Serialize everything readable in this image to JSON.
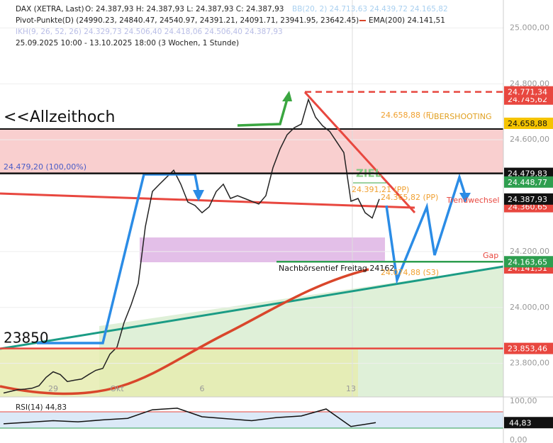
{
  "chart_data": {
    "type": "line",
    "header": {
      "symbol": "DAX (XETRA, Last)",
      "ohlc": "O: 24.387,93  H: 24.387,93  L: 24.387,93  C: 24.387,93",
      "bb": "BB(20, 2)  24.713,63  24.439,72  24.165,82",
      "pivot": "Pivot-Punkte(D)  (24990.23,  24840.47,  24540.97,  24391.21,  24091.71,  23941.95,  23642.45)",
      "ema": "EMA(200)  24.141,51",
      "ikh": "IKH(9, 26, 52, 26)  24.329,73  24.506,40  24.418,06  24.506,40  24.387,93",
      "range": "25.09.2025 10:00 - 13.10.2025 18:00 (3 Wochen, 1 Stunde)"
    },
    "categories": [
      null,
      null,
      null,
      null,
      null,
      null,
      null,
      "29",
      null,
      null,
      null,
      null,
      null,
      null,
      null,
      null,
      "Okt",
      null,
      null,
      null,
      null,
      null,
      null,
      null,
      null,
      null,
      null,
      null,
      "6",
      null,
      null,
      null,
      null,
      null,
      null,
      null,
      null,
      null,
      null,
      null,
      null,
      null,
      null,
      null,
      null,
      null,
      null,
      null,
      null,
      "13",
      null,
      null,
      null,
      null
    ],
    "values": [
      23694,
      23700,
      23706,
      23708,
      23711,
      23720,
      23750,
      23770,
      23760,
      23735,
      23740,
      23744,
      23760,
      23775,
      23782,
      23833,
      23858,
      23946,
      24010,
      24086,
      24289,
      24415,
      24441,
      24466,
      24491,
      24441,
      24377,
      24365,
      24339,
      24360,
      24415,
      24441,
      24390,
      24400,
      24390,
      24380,
      24370,
      24400,
      24500,
      24567,
      24618,
      24643,
      24656,
      24744,
      24681,
      24650,
      24630,
      24592,
      24554,
      24380,
      24390,
      24339,
      24320,
      24388
    ],
    "color": "#222222",
    "ylim": [
      23680,
      25100
    ],
    "yticks": [
      {
        "value": 23800,
        "label": "23.800,00"
      },
      {
        "value": 24000,
        "label": "24.000,00"
      },
      {
        "value": 24200,
        "label": "24.200,00"
      },
      {
        "value": 24600,
        "label": "24.600,00"
      },
      {
        "value": 24800,
        "label": "24.800,00"
      },
      {
        "value": 25000,
        "label": "25.000,00"
      }
    ],
    "levels": [
      {
        "value": 24745.62,
        "label": "24.745,62",
        "color": "#e8473f"
      },
      {
        "value": 24771.34,
        "label": "24.771,34",
        "color": "#e8473f",
        "line": "dashed"
      },
      {
        "value": 24658.88,
        "label": "24.658,88",
        "color": "#f5c400"
      },
      {
        "value": 24479.83,
        "label": "24.479,83",
        "color": "#111111",
        "line": "solid"
      },
      {
        "value": 24448.77,
        "label": "24.448,77",
        "color": "#2e9e4f"
      },
      {
        "value": 24360.65,
        "label": "24.360,65",
        "color": "#e8473f"
      },
      {
        "value": 24387.93,
        "label": "24.387,93",
        "color": "#111111"
      },
      {
        "value": 24141.51,
        "label": "24.141,51",
        "color": "#e8473f"
      },
      {
        "value": 24163.65,
        "label": "24.163,65",
        "color": "#2e9e4f",
        "line": "solid"
      },
      {
        "value": 23853.46,
        "label": "23.853,46",
        "color": "#e8473f",
        "line": "solid"
      }
    ],
    "annotations": {
      "ath": "<<Allzeithoch",
      "fib": "24.479,20 (100,00%)",
      "ziel": "ZIEL",
      "pp1": "24.391,21 (PP)",
      "pp2": "24.365,82 (PP)",
      "f": "24.658,88 (F",
      "overshoot": "ÜBERSHOOTING",
      "trend": "Trendwechsel",
      "gap": "Gap",
      "low": "Nachbörsentief Freitag 24162",
      "s3": "24.074,88 (S3)",
      "level": "23850"
    },
    "rsi": {
      "label": "RSI(14)  44,83",
      "value_label": "44,83",
      "values": [
        42,
        46,
        50,
        47,
        52,
        56,
        78,
        82,
        60,
        55,
        50,
        58,
        62,
        80,
        35,
        45
      ],
      "ylim": [
        0,
        100
      ],
      "yticks": [
        {
          "value": 100,
          "label": "100,00"
        },
        {
          "value": 0,
          "label": "0,00"
        }
      ]
    }
  }
}
